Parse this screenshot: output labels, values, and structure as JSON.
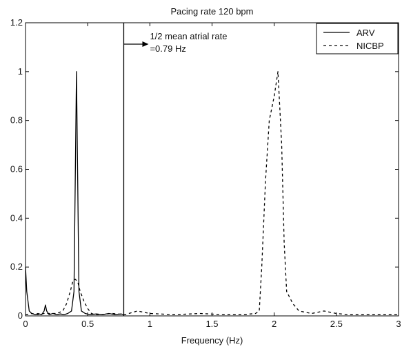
{
  "chart_data": {
    "type": "line",
    "title": "Pacing rate 120 bpm",
    "xlabel": "Frequency (Hz)",
    "ylabel": "",
    "xlim": [
      0,
      3
    ],
    "ylim": [
      0,
      1.2
    ],
    "xticks": [
      0,
      0.5,
      1,
      1.5,
      2,
      2.5,
      3
    ],
    "xtick_labels": [
      "0",
      "0.5",
      "1",
      "1.5",
      "2",
      "2.5",
      "3"
    ],
    "yticks": [
      0,
      0.2,
      0.4,
      0.6,
      0.8,
      1,
      1.2
    ],
    "ytick_labels": [
      "0",
      "0.2",
      "0.4",
      "0.6",
      "0.8",
      "1",
      "1.2"
    ],
    "grid": false,
    "legend_position": "top-right",
    "annotation": {
      "line1": "1/2 mean atrial rate",
      "line2": "=0.79 Hz",
      "x": 0.79
    },
    "series": [
      {
        "name": "ARV",
        "style": "solid",
        "color": "#000000",
        "x": [
          0,
          0.01,
          0.03,
          0.05,
          0.08,
          0.1,
          0.13,
          0.15,
          0.16,
          0.17,
          0.19,
          0.22,
          0.25,
          0.28,
          0.31,
          0.34,
          0.37,
          0.39,
          0.41,
          0.43,
          0.45,
          0.48,
          0.52,
          0.57,
          0.62,
          0.67,
          0.72,
          0.77,
          0.79
        ],
        "y": [
          0.2,
          0.1,
          0.02,
          0.01,
          0.005,
          0.01,
          0.005,
          0.02,
          0.045,
          0.02,
          0.005,
          0.01,
          0.005,
          0.008,
          0.005,
          0.01,
          0.02,
          0.1,
          1.0,
          0.1,
          0.02,
          0.01,
          0.005,
          0.008,
          0.005,
          0.01,
          0.005,
          0.008,
          0.005
        ]
      },
      {
        "name": "NICBP",
        "style": "dashed",
        "color": "#000000",
        "x": [
          0,
          0.05,
          0.1,
          0.15,
          0.2,
          0.25,
          0.3,
          0.33,
          0.36,
          0.38,
          0.4,
          0.42,
          0.44,
          0.47,
          0.5,
          0.53,
          0.56,
          0.6,
          0.7,
          0.8,
          0.9,
          1.0,
          1.2,
          1.4,
          1.6,
          1.75,
          1.85,
          1.88,
          1.9,
          1.93,
          1.96,
          2.0,
          2.03,
          2.06,
          2.08,
          2.1,
          2.15,
          2.2,
          2.3,
          2.35,
          2.4,
          2.45,
          2.5,
          2.6,
          2.8,
          3.0
        ],
        "y": [
          0.005,
          0.01,
          0.005,
          0.01,
          0.01,
          0.01,
          0.02,
          0.05,
          0.1,
          0.14,
          0.15,
          0.14,
          0.1,
          0.06,
          0.03,
          0.01,
          0.005,
          0.005,
          0.01,
          0.005,
          0.02,
          0.01,
          0.005,
          0.01,
          0.005,
          0.005,
          0.01,
          0.02,
          0.2,
          0.55,
          0.8,
          0.9,
          1.0,
          0.7,
          0.3,
          0.1,
          0.05,
          0.02,
          0.01,
          0.015,
          0.02,
          0.015,
          0.01,
          0.005,
          0.005,
          0.005
        ]
      }
    ]
  }
}
